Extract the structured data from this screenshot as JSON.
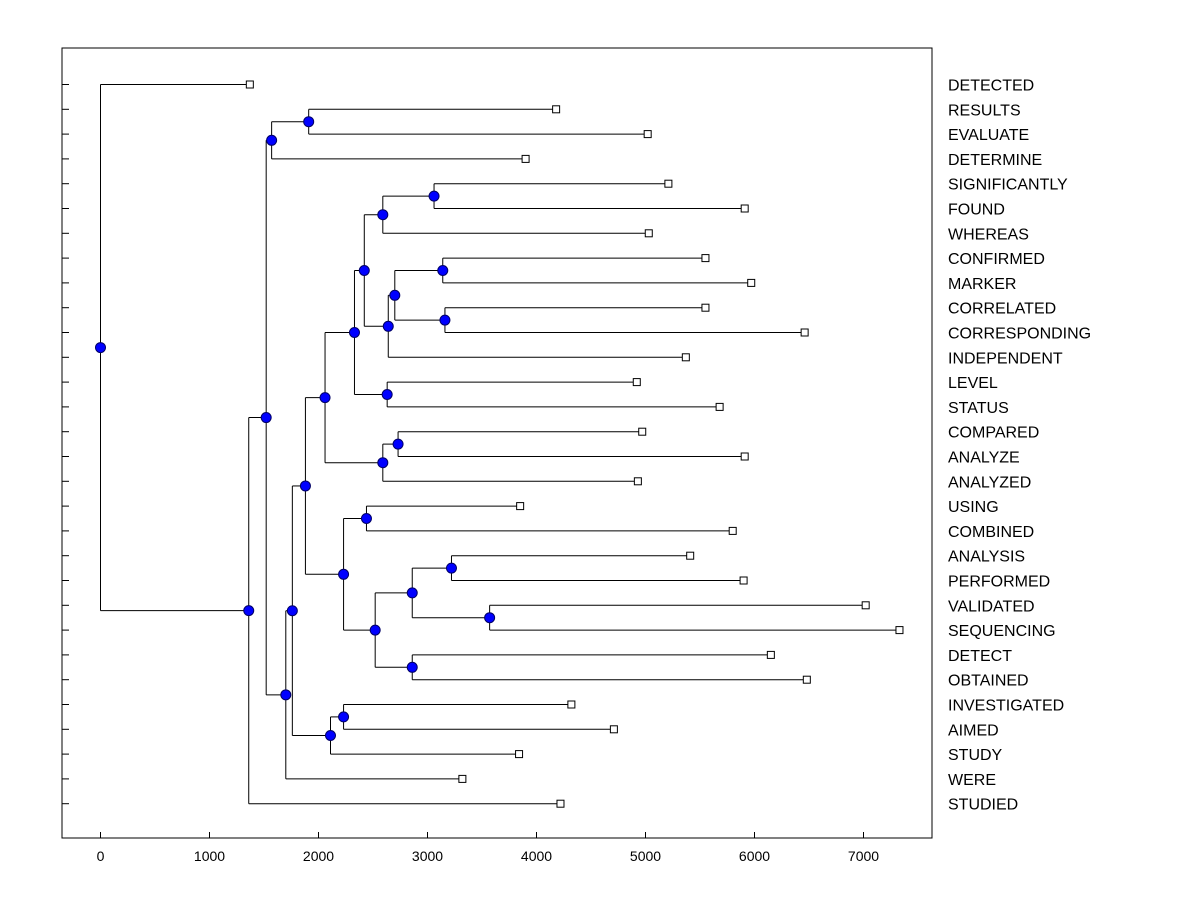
{
  "chart_data": {
    "type": "dendrogram",
    "title": "",
    "xlabel": "",
    "ylabel": "",
    "xlim": [
      -350,
      7700
    ],
    "xticks": [
      0,
      1000,
      2000,
      3000,
      4000,
      5000,
      6000,
      7000
    ],
    "xtick_labels": [
      "0",
      "1000",
      "2000",
      "3000",
      "4000",
      "5000",
      "6000",
      "7000"
    ],
    "grid": false,
    "leaves": [
      {
        "label": "DETECTED",
        "value": 1370
      },
      {
        "label": "RESULTS",
        "value": 4180
      },
      {
        "label": "EVALUATE",
        "value": 5020
      },
      {
        "label": "DETERMINE",
        "value": 3900
      },
      {
        "label": "SIGNIFICANTLY",
        "value": 5210
      },
      {
        "label": "FOUND",
        "value": 5910
      },
      {
        "label": "WHEREAS",
        "value": 5030
      },
      {
        "label": "CONFIRMED",
        "value": 5550
      },
      {
        "label": "MARKER",
        "value": 5970
      },
      {
        "label": "CORRELATED",
        "value": 5550
      },
      {
        "label": "CORRESPONDING",
        "value": 6460
      },
      {
        "label": "INDEPENDENT",
        "value": 5370
      },
      {
        "label": "LEVEL",
        "value": 4920
      },
      {
        "label": "STATUS",
        "value": 5680
      },
      {
        "label": "COMPARED",
        "value": 4970
      },
      {
        "label": "ANALYZE",
        "value": 5910
      },
      {
        "label": "ANALYZED",
        "value": 4930
      },
      {
        "label": "USING",
        "value": 3850
      },
      {
        "label": "COMBINED",
        "value": 5800
      },
      {
        "label": "ANALYSIS",
        "value": 5410
      },
      {
        "label": "PERFORMED",
        "value": 5900
      },
      {
        "label": "VALIDATED",
        "value": 7020
      },
      {
        "label": "SEQUENCING",
        "value": 7330
      },
      {
        "label": "DETECT",
        "value": 6150
      },
      {
        "label": "OBTAINED",
        "value": 6480
      },
      {
        "label": "INVESTIGATED",
        "value": 4320
      },
      {
        "label": "AIMED",
        "value": 4710
      },
      {
        "label": "STUDY",
        "value": 3840
      },
      {
        "label": "WERE",
        "value": 3320
      },
      {
        "label": "STUDIED",
        "value": 4220
      }
    ],
    "merges": [
      {
        "id": "n1",
        "value": 3060,
        "children": [
          "L4",
          "L5"
        ]
      },
      {
        "id": "n2",
        "value": 2590,
        "children": [
          "n1",
          "L6"
        ]
      },
      {
        "id": "n3",
        "value": 3140,
        "children": [
          "L7",
          "L8"
        ]
      },
      {
        "id": "n4",
        "value": 3160,
        "children": [
          "L9",
          "L10"
        ]
      },
      {
        "id": "n5",
        "value": 2700,
        "children": [
          "n3",
          "n4"
        ]
      },
      {
        "id": "n6",
        "value": 2640,
        "children": [
          "n5",
          "L11"
        ]
      },
      {
        "id": "n7",
        "value": 2420,
        "children": [
          "n2",
          "n6"
        ]
      },
      {
        "id": "n8",
        "value": 2630,
        "children": [
          "L12",
          "L13"
        ]
      },
      {
        "id": "n9",
        "value": 2330,
        "children": [
          "n7",
          "n8"
        ]
      },
      {
        "id": "n10",
        "value": 2730,
        "children": [
          "L14",
          "L15"
        ]
      },
      {
        "id": "n11",
        "value": 2590,
        "children": [
          "n10",
          "L16"
        ]
      },
      {
        "id": "n12",
        "value": 2060,
        "children": [
          "n9",
          "n11"
        ]
      },
      {
        "id": "n13",
        "value": 2440,
        "children": [
          "L17",
          "L18"
        ]
      },
      {
        "id": "n14",
        "value": 3220,
        "children": [
          "L19",
          "L20"
        ]
      },
      {
        "id": "n15",
        "value": 3570,
        "children": [
          "L21",
          "L22"
        ]
      },
      {
        "id": "n16",
        "value": 2860,
        "children": [
          "n14",
          "n15"
        ]
      },
      {
        "id": "n17",
        "value": 2860,
        "children": [
          "L23",
          "L24"
        ]
      },
      {
        "id": "n18",
        "value": 2520,
        "children": [
          "n16",
          "n17"
        ]
      },
      {
        "id": "n19",
        "value": 2230,
        "children": [
          "n13",
          "n18"
        ]
      },
      {
        "id": "n20",
        "value": 1880,
        "children": [
          "n12",
          "n19"
        ]
      },
      {
        "id": "n21",
        "value": 2230,
        "children": [
          "L25",
          "L26"
        ]
      },
      {
        "id": "n22",
        "value": 2110,
        "children": [
          "n21",
          "L27"
        ]
      },
      {
        "id": "n23",
        "value": 1760,
        "children": [
          "n20",
          "n22"
        ]
      },
      {
        "id": "n24",
        "value": 1700,
        "children": [
          "n23",
          "L28"
        ]
      },
      {
        "id": "n25",
        "value": 1910,
        "children": [
          "L1",
          "L2"
        ]
      },
      {
        "id": "n26",
        "value": 1570,
        "children": [
          "n25",
          "L3"
        ]
      },
      {
        "id": "n27",
        "value": 1520,
        "children": [
          "n26",
          "n24"
        ]
      },
      {
        "id": "n28",
        "value": 1360,
        "children": [
          "n27",
          "L29"
        ]
      },
      {
        "id": "n29",
        "value": 0,
        "children": [
          "L0",
          "n28"
        ]
      }
    ],
    "colors": {
      "node_fill": "#0000ff",
      "node_stroke": "#000066",
      "leaf_fill": "#ffffff",
      "line": "#000000"
    }
  }
}
